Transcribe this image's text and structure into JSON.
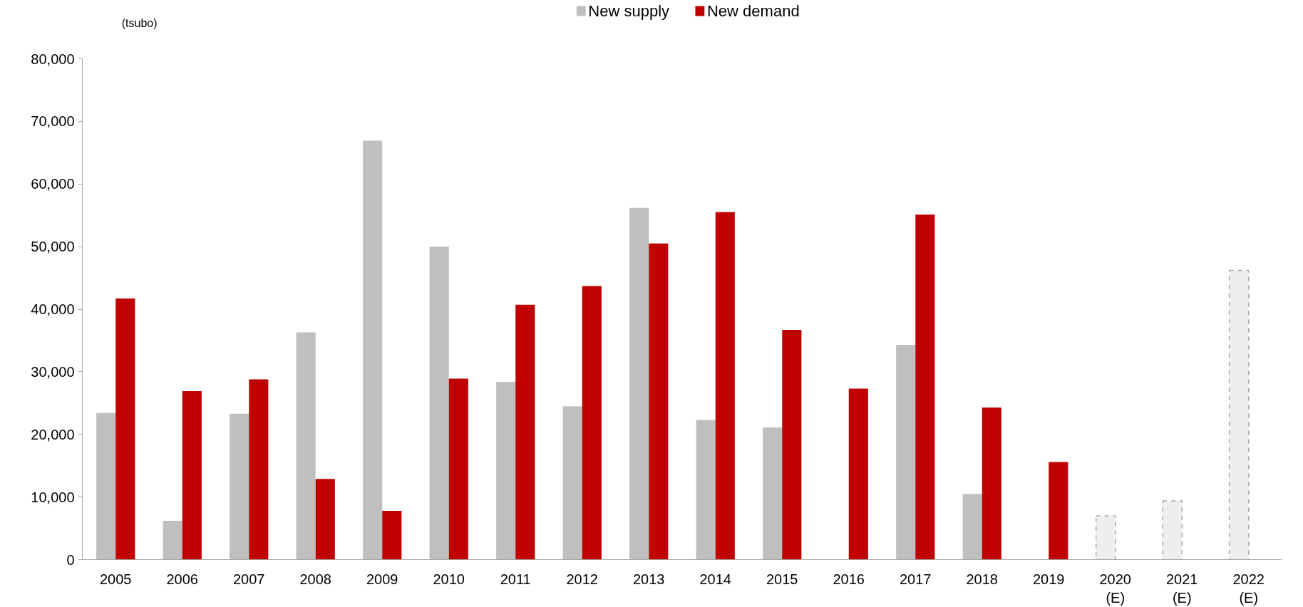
{
  "chart_data": {
    "type": "bar",
    "ylabel": "(tsubo)",
    "categories": [
      "2005",
      "2006",
      "2007",
      "2008",
      "2009",
      "2010",
      "2011",
      "2012",
      "2013",
      "2014",
      "2015",
      "2016",
      "2017",
      "2018",
      "2019",
      "2020\n(E)",
      "2021\n(E)",
      "2022\n(E)"
    ],
    "series": [
      {
        "name": "New supply",
        "color": "#bfbfbf",
        "colors": [
          "#bfbfbf",
          "#bfbfbf",
          "#bfbfbf",
          "#bfbfbf",
          "#bfbfbf",
          "#bfbfbf",
          "#bfbfbf",
          "#bfbfbf",
          "#bfbfbf",
          "#bfbfbf",
          "#bfbfbf",
          "#bfbfbf",
          "#bfbfbf",
          "#bfbfbf",
          "#bfbfbf",
          "#eeeeee",
          "#eeeeee",
          "#eeeeee"
        ],
        "line_style": [
          "solid",
          "solid",
          "solid",
          "solid",
          "solid",
          "solid",
          "solid",
          "solid",
          "solid",
          "solid",
          "solid",
          "solid",
          "solid",
          "solid",
          "solid",
          "dashed",
          "dashed",
          "dashed"
        ],
        "values": [
          23400,
          6200,
          23300,
          36300,
          66900,
          50000,
          28400,
          24500,
          56200,
          22300,
          21100,
          null,
          34300,
          10500,
          null,
          7000,
          9400,
          46200
        ]
      },
      {
        "name": "New demand",
        "color": "#c00000",
        "values": [
          41700,
          26900,
          28800,
          12900,
          7800,
          28900,
          40700,
          43700,
          50500,
          55500,
          36700,
          27300,
          55100,
          24300,
          15600,
          null,
          null,
          null
        ]
      }
    ],
    "ylim": [
      0,
      80000
    ],
    "yticks": [
      {
        "value": 0,
        "label": "0"
      },
      {
        "value": 10000,
        "label": "10,000"
      },
      {
        "value": 20000,
        "label": "20,000"
      },
      {
        "value": 30000,
        "label": "30,000"
      },
      {
        "value": 40000,
        "label": "40,000"
      },
      {
        "value": 50000,
        "label": "50,000"
      },
      {
        "value": 60000,
        "label": "60,000"
      },
      {
        "value": 70000,
        "label": "70,000"
      },
      {
        "value": 80000,
        "label": "80,000"
      }
    ],
    "grid": false,
    "legend": "top"
  }
}
